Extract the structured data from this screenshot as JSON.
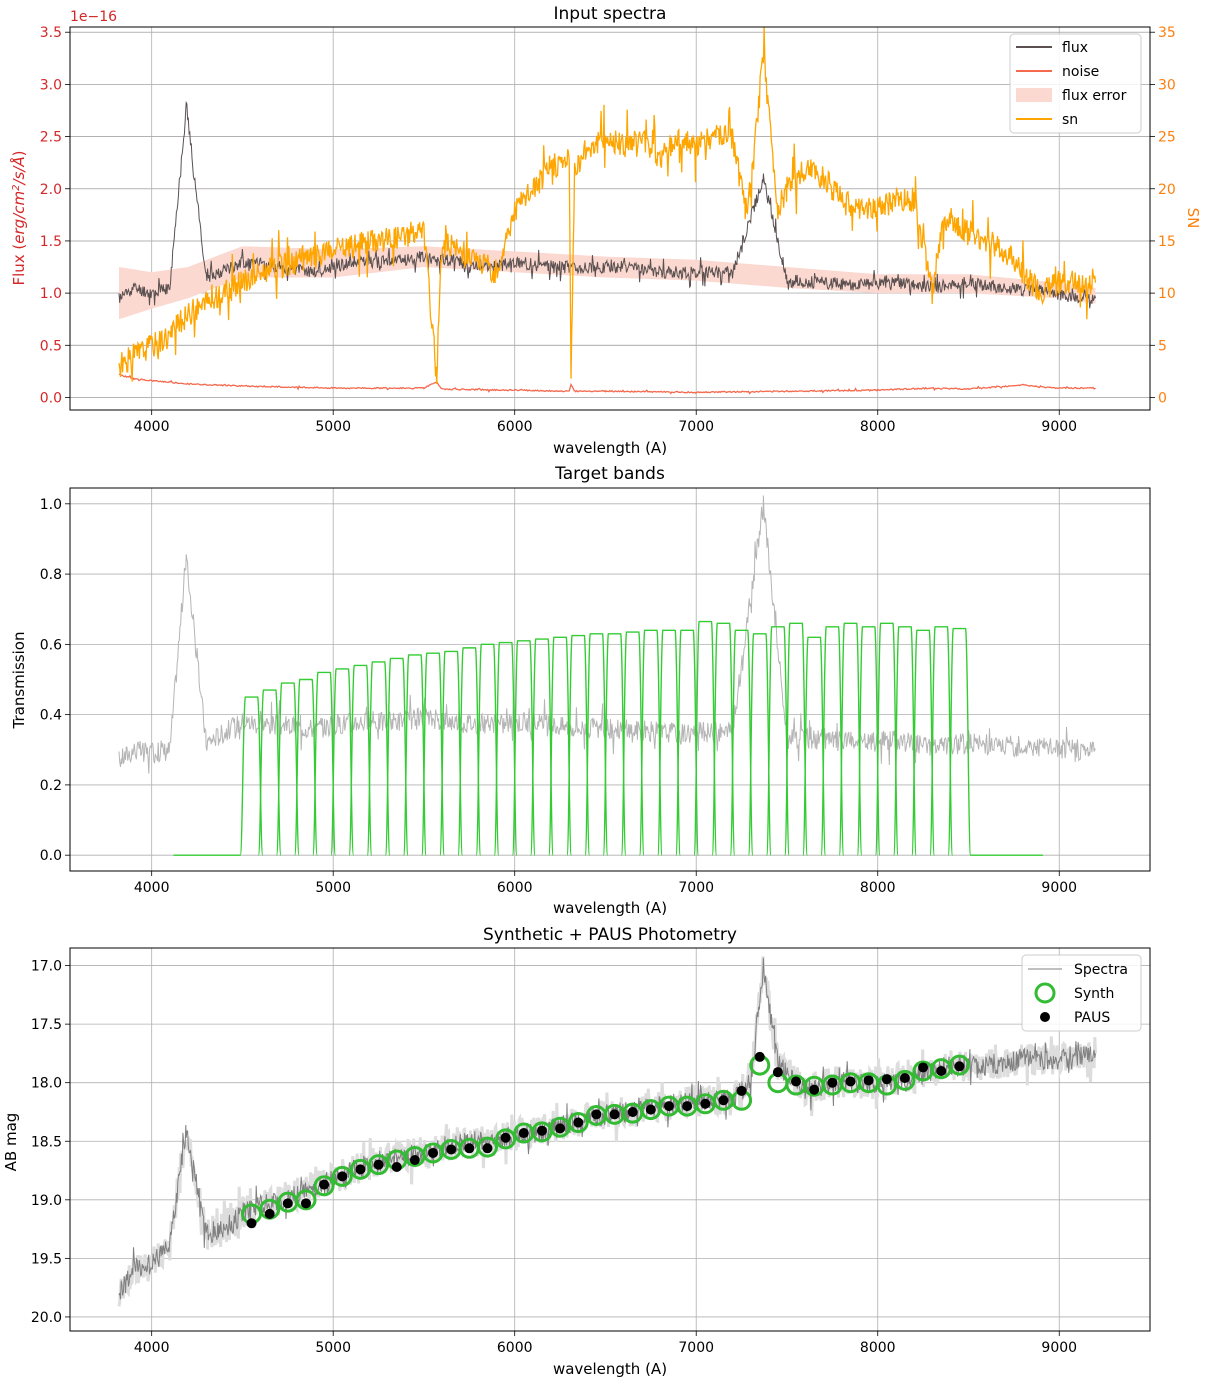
{
  "chart_data": [
    {
      "type": "line",
      "title": "Input spectra",
      "xlabel": "wavelength (A)",
      "ylabel": "Flux (erg/cm²/s/Å)",
      "y2label": "SN",
      "offset_text": "1e−16",
      "xlim": [
        3550,
        9500
      ],
      "ylim": [
        -0.12,
        3.55
      ],
      "y2lim": [
        -1.2,
        35.5
      ],
      "grid": true,
      "legend_position": "upper right",
      "x_ticks": [
        4000,
        5000,
        6000,
        7000,
        8000,
        9000
      ],
      "y_ticks": [
        0.0,
        0.5,
        1.0,
        1.5,
        2.0,
        2.5,
        3.0,
        3.5
      ],
      "y2_ticks": [
        0,
        5,
        10,
        15,
        20,
        25,
        30,
        35
      ],
      "colors": {
        "flux": "#5a5050",
        "noise": "#f56a4e",
        "flux_error": "#fbd8d0",
        "sn": "#ffa500",
        "left_axis": "#d62728",
        "right_axis": "#ff7f0e"
      },
      "series": [
        {
          "name": "flux",
          "axis": "left",
          "x": [
            3820,
            3900,
            4000,
            4100,
            4190,
            4300,
            4500,
            4700,
            4900,
            5100,
            5300,
            5500,
            5700,
            5900,
            6000,
            6200,
            6400,
            6600,
            6800,
            7000,
            7200,
            7370,
            7500,
            7700,
            7900,
            8100,
            8300,
            8500,
            8700,
            8900,
            9100,
            9200
          ],
          "y": [
            0.95,
            1.05,
            1.0,
            1.05,
            2.8,
            1.15,
            1.3,
            1.25,
            1.2,
            1.3,
            1.3,
            1.35,
            1.3,
            1.25,
            1.3,
            1.25,
            1.25,
            1.25,
            1.2,
            1.2,
            1.2,
            2.1,
            1.12,
            1.1,
            1.08,
            1.1,
            1.05,
            1.1,
            1.05,
            1.02,
            0.95,
            0.95
          ]
        },
        {
          "name": "noise",
          "axis": "left",
          "x": [
            3820,
            3900,
            4000,
            4200,
            4500,
            5000,
            5500,
            5570,
            5600,
            6000,
            6300,
            6310,
            6330,
            6500,
            7000,
            7500,
            8000,
            8300,
            8500,
            8800,
            8900,
            9000,
            9200
          ],
          "y": [
            0.22,
            0.18,
            0.16,
            0.13,
            0.11,
            0.09,
            0.09,
            0.15,
            0.08,
            0.07,
            0.06,
            0.12,
            0.06,
            0.06,
            0.05,
            0.06,
            0.07,
            0.09,
            0.08,
            0.12,
            0.1,
            0.09,
            0.09
          ]
        },
        {
          "name": "flux error",
          "axis": "left",
          "x": [
            3820,
            4000,
            4200,
            4500,
            5000,
            5500,
            6000,
            6500,
            7000,
            7500,
            8000,
            8500,
            9000,
            9200
          ],
          "y_low": [
            0.75,
            0.85,
            0.95,
            1.15,
            1.15,
            1.25,
            1.2,
            1.15,
            1.12,
            1.05,
            1.0,
            1.0,
            0.95,
            0.9
          ],
          "y_high": [
            1.25,
            1.2,
            1.25,
            1.45,
            1.42,
            1.45,
            1.4,
            1.35,
            1.32,
            1.25,
            1.18,
            1.18,
            1.1,
            1.05
          ]
        },
        {
          "name": "sn",
          "axis": "right",
          "x": [
            3820,
            3900,
            4000,
            4100,
            4200,
            4400,
            4600,
            4800,
            5000,
            5200,
            5400,
            5500,
            5570,
            5600,
            5700,
            5800,
            5900,
            6000,
            6100,
            6200,
            6300,
            6310,
            6330,
            6400,
            6500,
            6600,
            6700,
            6800,
            6900,
            7000,
            7100,
            7200,
            7270,
            7300,
            7370,
            7450,
            7500,
            7600,
            7700,
            7800,
            7900,
            8000,
            8100,
            8200,
            8300,
            8350,
            8400,
            8500,
            8600,
            8700,
            8800,
            8900,
            9000,
            9100,
            9200
          ],
          "y": [
            3,
            4,
            5,
            6,
            8,
            10,
            12,
            13,
            14,
            15,
            15.5,
            16,
            2,
            15,
            14,
            13,
            12,
            18,
            20,
            22,
            23,
            2,
            22,
            24,
            25,
            24,
            25,
            23,
            25,
            24,
            25,
            25,
            18,
            20,
            33,
            18,
            20,
            22,
            21,
            19,
            18,
            18,
            19,
            19,
            10,
            16,
            17,
            16,
            15,
            14,
            12,
            10,
            11,
            11,
            11
          ]
        }
      ]
    },
    {
      "type": "line",
      "title": "Target bands",
      "xlabel": "wavelength (A)",
      "ylabel": "Transmission",
      "xlim": [
        3550,
        9500
      ],
      "ylim": [
        -0.045,
        1.045
      ],
      "grid": true,
      "x_ticks": [
        4000,
        5000,
        6000,
        7000,
        8000,
        9000
      ],
      "y_ticks": [
        0.0,
        0.2,
        0.4,
        0.6,
        0.8,
        1.0
      ],
      "colors": {
        "bands": "#33cc33",
        "spectrum": "#b5b5b5"
      },
      "band_centers": [
        4550,
        4650,
        4750,
        4850,
        4950,
        5050,
        5150,
        5250,
        5350,
        5450,
        5550,
        5650,
        5750,
        5850,
        5950,
        6050,
        6150,
        6250,
        6350,
        6450,
        6550,
        6650,
        6750,
        6850,
        6950,
        7050,
        7150,
        7250,
        7350,
        7450,
        7550,
        7650,
        7750,
        7850,
        7950,
        8050,
        8150,
        8250,
        8350,
        8450
      ],
      "band_peaks": [
        0.45,
        0.47,
        0.49,
        0.5,
        0.52,
        0.53,
        0.54,
        0.55,
        0.56,
        0.57,
        0.575,
        0.58,
        0.59,
        0.6,
        0.605,
        0.61,
        0.615,
        0.62,
        0.625,
        0.63,
        0.63,
        0.635,
        0.64,
        0.64,
        0.64,
        0.665,
        0.66,
        0.64,
        0.63,
        0.65,
        0.66,
        0.62,
        0.65,
        0.66,
        0.65,
        0.66,
        0.65,
        0.64,
        0.65,
        0.645
      ],
      "band_width": 100,
      "band_baseline_range": [
        4120,
        8910
      ],
      "spectrum": {
        "x": [
          3820,
          3900,
          4000,
          4100,
          4190,
          4300,
          4500,
          4700,
          4900,
          5100,
          5300,
          5500,
          5700,
          5900,
          6000,
          6200,
          6400,
          6600,
          6800,
          7000,
          7200,
          7370,
          7500,
          7700,
          7900,
          8100,
          8300,
          8500,
          8700,
          8900,
          9100,
          9200
        ],
        "y": [
          0.27,
          0.3,
          0.29,
          0.3,
          0.85,
          0.32,
          0.38,
          0.37,
          0.36,
          0.38,
          0.38,
          0.39,
          0.38,
          0.37,
          0.38,
          0.37,
          0.36,
          0.36,
          0.35,
          0.35,
          0.35,
          1.0,
          0.33,
          0.33,
          0.32,
          0.33,
          0.31,
          0.32,
          0.31,
          0.31,
          0.3,
          0.3
        ]
      }
    },
    {
      "type": "scatter",
      "title": "Synthetic + PAUS Photometry",
      "xlabel": "wavelength (A)",
      "ylabel": "AB mag",
      "xlim": [
        3550,
        9500
      ],
      "ylim": [
        20.12,
        16.85
      ],
      "y_inverted": true,
      "grid": true,
      "legend_position": "upper right",
      "x_ticks": [
        4000,
        5000,
        6000,
        7000,
        8000,
        9000
      ],
      "y_ticks": [
        17.0,
        17.5,
        18.0,
        18.5,
        19.0,
        19.5,
        20.0
      ],
      "colors": {
        "spectra": "#808080",
        "synth": "#33bb33",
        "paus": "#000000",
        "error_band": "#dddddd"
      },
      "series": [
        {
          "name": "Spectra",
          "x": [
            3820,
            3900,
            4000,
            4100,
            4190,
            4300,
            4450,
            4500,
            4700,
            4900,
            5100,
            5300,
            5500,
            5700,
            5900,
            6000,
            6200,
            6400,
            6600,
            6800,
            7000,
            7200,
            7300,
            7370,
            7450,
            7600,
            7800,
            8000,
            8200,
            8400,
            8600,
            8800,
            9000,
            9200
          ],
          "y": [
            19.8,
            19.6,
            19.55,
            19.4,
            18.4,
            19.3,
            19.2,
            19.1,
            19.0,
            18.9,
            18.75,
            18.65,
            18.6,
            18.5,
            18.5,
            18.45,
            18.4,
            18.3,
            18.25,
            18.2,
            18.15,
            18.15,
            18.0,
            17.0,
            17.85,
            18.05,
            18.0,
            18.0,
            17.95,
            17.85,
            17.85,
            17.8,
            17.8,
            17.75
          ]
        },
        {
          "name": "Synth",
          "x": [
            4550,
            4650,
            4750,
            4850,
            4950,
            5050,
            5150,
            5250,
            5350,
            5450,
            5550,
            5650,
            5750,
            5850,
            5950,
            6050,
            6150,
            6250,
            6350,
            6450,
            6550,
            6650,
            6750,
            6850,
            6950,
            7050,
            7150,
            7250,
            7350,
            7450,
            7550,
            7650,
            7750,
            7850,
            7950,
            8050,
            8150,
            8250,
            8350,
            8450
          ],
          "y": [
            19.12,
            19.08,
            19.02,
            19.0,
            18.88,
            18.8,
            18.74,
            18.7,
            18.66,
            18.63,
            18.6,
            18.57,
            18.56,
            18.55,
            18.48,
            18.43,
            18.42,
            18.38,
            18.34,
            18.28,
            18.27,
            18.26,
            18.23,
            18.2,
            18.2,
            18.18,
            18.15,
            18.15,
            17.85,
            18.0,
            18.02,
            18.03,
            18.02,
            18.0,
            18.0,
            18.02,
            17.98,
            17.9,
            17.88,
            17.85
          ]
        },
        {
          "name": "PAUS",
          "x": [
            4550,
            4650,
            4750,
            4850,
            4950,
            5050,
            5150,
            5250,
            5350,
            5450,
            5550,
            5650,
            5750,
            5850,
            5950,
            6050,
            6150,
            6250,
            6350,
            6450,
            6550,
            6650,
            6750,
            6850,
            6950,
            7050,
            7150,
            7250,
            7350,
            7450,
            7550,
            7650,
            7750,
            7850,
            7950,
            8050,
            8150,
            8250,
            8350,
            8450
          ],
          "y": [
            19.2,
            19.12,
            19.03,
            19.03,
            18.87,
            18.8,
            18.74,
            18.7,
            18.72,
            18.66,
            18.6,
            18.57,
            18.56,
            18.56,
            18.47,
            18.43,
            18.41,
            18.39,
            18.34,
            18.27,
            18.27,
            18.25,
            18.23,
            18.2,
            18.2,
            18.18,
            18.15,
            18.07,
            17.78,
            17.91,
            17.99,
            18.06,
            18.0,
            17.99,
            17.98,
            17.97,
            17.96,
            17.87,
            17.9,
            17.86
          ]
        }
      ]
    }
  ]
}
